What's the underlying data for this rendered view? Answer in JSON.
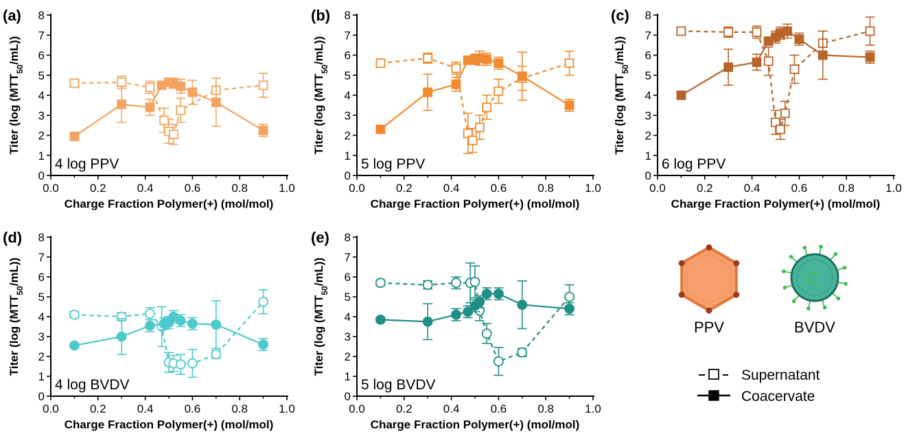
{
  "colors": {
    "a": "#F4A460",
    "b": "#F08A2E",
    "c": "#B8652A",
    "d": "#4CC9CB",
    "e": "#1E8E86",
    "ppv_fill": "#F5A06A",
    "ppv_stroke": "#E0783A",
    "ppv_vertex": "#9A3A1E",
    "bvdv_fill": "#46B39A",
    "bvdv_ring": "#1E6E60",
    "bvdv_spike": "#3CBF4E"
  },
  "legend": {
    "supernatant": "Supernatant",
    "coacervate": "Coacervate"
  },
  "viruses": {
    "ppv_label": "PPV",
    "bvdv_label": "BVDV"
  },
  "chart_data": [
    {
      "panel": "(a)",
      "type": "line",
      "annotation": "4 log PPV",
      "xlabel": "Charge Fraction Polymer(+) (mol/mol)",
      "ylabel": "Titer (log (MTT50/mL))",
      "xlim": [
        0.0,
        1.0
      ],
      "ylim": [
        0,
        8
      ],
      "xticks": [
        "0.0",
        "0.2",
        "0.4",
        "0.6",
        "0.8",
        "1.0"
      ],
      "yticks": [
        "0",
        "1",
        "2",
        "3",
        "4",
        "5",
        "6",
        "7",
        "8"
      ],
      "color_key": "a",
      "marker": "square",
      "series": [
        {
          "name": "Supernatant",
          "style": "dashed-open",
          "x": [
            0.1,
            0.3,
            0.42,
            0.48,
            0.5,
            0.52,
            0.55,
            0.7,
            0.9
          ],
          "y": [
            4.6,
            4.65,
            4.4,
            2.75,
            2.2,
            2.05,
            3.25,
            4.25,
            4.5
          ],
          "err": [
            0.15,
            0.3,
            0.3,
            0.6,
            0.6,
            0.5,
            0.6,
            0.6,
            0.6
          ]
        },
        {
          "name": "Coacervate",
          "style": "solid-filled",
          "x": [
            0.1,
            0.3,
            0.42,
            0.47,
            0.5,
            0.52,
            0.55,
            0.6,
            0.7,
            0.9
          ],
          "y": [
            1.95,
            3.55,
            3.4,
            4.5,
            4.65,
            4.6,
            4.45,
            4.15,
            3.65,
            2.25
          ],
          "err": [
            0.15,
            0.9,
            0.4,
            0.2,
            0.2,
            0.25,
            0.35,
            0.6,
            1.2,
            0.3
          ]
        }
      ]
    },
    {
      "panel": "(b)",
      "type": "line",
      "annotation": "5 log PPV",
      "xlabel": "Charge Fraction Polymer(+) (mol/mol)",
      "ylabel": "Titer (log (MTT50/mL))",
      "xlim": [
        0.0,
        1.0
      ],
      "ylim": [
        0,
        8
      ],
      "xticks": [
        "0.0",
        "0.2",
        "0.4",
        "0.6",
        "0.8",
        "1.0"
      ],
      "yticks": [
        "0",
        "1",
        "2",
        "3",
        "4",
        "5",
        "6",
        "7",
        "8"
      ],
      "color_key": "b",
      "marker": "square",
      "series": [
        {
          "name": "Supernatant",
          "style": "dashed-open",
          "x": [
            0.1,
            0.3,
            0.42,
            0.47,
            0.49,
            0.52,
            0.55,
            0.6,
            0.7,
            0.9
          ],
          "y": [
            5.6,
            5.85,
            5.35,
            2.1,
            1.75,
            2.4,
            3.4,
            4.2,
            4.85,
            5.6
          ],
          "err": [
            0.15,
            0.25,
            0.3,
            1.0,
            0.6,
            0.6,
            0.6,
            0.6,
            0.6,
            0.6
          ]
        },
        {
          "name": "Coacervate",
          "style": "solid-filled",
          "x": [
            0.1,
            0.3,
            0.42,
            0.47,
            0.5,
            0.52,
            0.55,
            0.6,
            0.7,
            0.9
          ],
          "y": [
            2.3,
            4.15,
            4.55,
            5.75,
            5.8,
            5.85,
            5.8,
            5.6,
            4.95,
            3.5
          ],
          "err": [
            0.15,
            0.9,
            0.35,
            0.2,
            0.25,
            0.35,
            0.3,
            0.3,
            1.2,
            0.3
          ]
        }
      ]
    },
    {
      "panel": "(c)",
      "type": "line",
      "annotation": "6 log PPV",
      "xlabel": "Charge Fraction Polymer(+) (mol/mol)",
      "ylabel": "Titer (log (MTT50/mL))",
      "xlim": [
        0.0,
        1.0
      ],
      "ylim": [
        0,
        8
      ],
      "xticks": [
        "0.0",
        "0.2",
        "0.4",
        "0.6",
        "0.8",
        "1.0"
      ],
      "yticks": [
        "0",
        "1",
        "2",
        "3",
        "4",
        "5",
        "6",
        "7",
        "8"
      ],
      "color_key": "c",
      "marker": "square",
      "series": [
        {
          "name": "Supernatant",
          "style": "dashed-open",
          "x": [
            0.1,
            0.3,
            0.42,
            0.47,
            0.5,
            0.52,
            0.54,
            0.58,
            0.7,
            0.9
          ],
          "y": [
            7.2,
            7.15,
            7.15,
            5.7,
            2.65,
            2.3,
            3.1,
            5.3,
            6.6,
            7.2
          ],
          "err": [
            0.15,
            0.25,
            0.3,
            0.7,
            0.6,
            0.5,
            0.6,
            0.7,
            0.6,
            0.7
          ]
        },
        {
          "name": "Coacervate",
          "style": "solid-filled",
          "x": [
            0.1,
            0.3,
            0.42,
            0.47,
            0.5,
            0.52,
            0.55,
            0.6,
            0.7,
            0.9
          ],
          "y": [
            4.0,
            5.4,
            5.65,
            6.7,
            6.9,
            7.1,
            7.2,
            6.8,
            6.0,
            5.9
          ],
          "err": [
            0.15,
            0.9,
            0.4,
            0.2,
            0.3,
            0.3,
            0.35,
            0.3,
            1.2,
            0.3
          ]
        }
      ]
    },
    {
      "panel": "(d)",
      "type": "line",
      "annotation": "4 log BVDV",
      "xlabel": "Charge Fraction Polymer(+) (mol/mol)",
      "ylabel": "Titer (log (MTT50/mL))",
      "xlim": [
        0.0,
        1.0
      ],
      "ylim": [
        0,
        8
      ],
      "xticks": [
        "0.0",
        "0.2",
        "0.4",
        "0.6",
        "0.8",
        "1.0"
      ],
      "yticks": [
        "0",
        "1",
        "2",
        "3",
        "4",
        "5",
        "6",
        "7",
        "8"
      ],
      "color_key": "d",
      "marker": "circle",
      "series": [
        {
          "name": "Supernatant",
          "style": "dashed-open",
          "x": [
            0.1,
            0.3,
            0.42,
            0.47,
            0.5,
            0.52,
            0.55,
            0.6,
            0.7,
            0.9
          ],
          "y": [
            4.1,
            4.0,
            4.15,
            3.5,
            1.7,
            1.65,
            1.6,
            1.65,
            2.1,
            4.75
          ],
          "err": [
            0.15,
            0.2,
            0.3,
            1.0,
            0.5,
            0.4,
            0.5,
            0.7,
            0.2,
            0.6
          ]
        },
        {
          "name": "Coacervate",
          "style": "solid-filled",
          "x": [
            0.1,
            0.3,
            0.42,
            0.48,
            0.5,
            0.52,
            0.55,
            0.6,
            0.7,
            0.9
          ],
          "y": [
            2.55,
            3.0,
            3.55,
            3.65,
            3.7,
            4.0,
            3.8,
            3.65,
            3.6,
            2.6
          ],
          "err": [
            0.1,
            0.9,
            0.3,
            0.3,
            0.3,
            0.3,
            0.3,
            0.3,
            1.2,
            0.3
          ]
        }
      ]
    },
    {
      "panel": "(e)",
      "type": "line",
      "annotation": "5 log BVDV",
      "xlabel": "Charge Fraction Polymer(+) (mol/mol)",
      "ylabel": "Titer (log (MTT50/mL))",
      "xlim": [
        0.0,
        1.0
      ],
      "ylim": [
        0,
        8
      ],
      "xticks": [
        "0.0",
        "0.2",
        "0.4",
        "0.6",
        "0.8",
        "1.0"
      ],
      "yticks": [
        "0",
        "1",
        "2",
        "3",
        "4",
        "5",
        "6",
        "7",
        "8"
      ],
      "color_key": "e",
      "marker": "circle",
      "series": [
        {
          "name": "Supernatant",
          "style": "dashed-open",
          "x": [
            0.1,
            0.3,
            0.42,
            0.48,
            0.5,
            0.52,
            0.55,
            0.6,
            0.7,
            0.9
          ],
          "y": [
            5.7,
            5.6,
            5.7,
            5.7,
            5.75,
            4.3,
            3.15,
            1.75,
            2.2,
            5.0
          ],
          "err": [
            0.15,
            0.2,
            0.3,
            1.0,
            0.8,
            0.5,
            0.5,
            0.7,
            0.2,
            0.6
          ]
        },
        {
          "name": "Coacervate",
          "style": "solid-filled",
          "x": [
            0.1,
            0.3,
            0.42,
            0.47,
            0.5,
            0.52,
            0.55,
            0.6,
            0.7,
            0.9
          ],
          "y": [
            3.85,
            3.75,
            4.1,
            4.25,
            4.55,
            4.75,
            5.15,
            5.15,
            4.6,
            4.4
          ],
          "err": [
            0.1,
            0.9,
            0.3,
            0.3,
            0.3,
            0.3,
            0.3,
            0.3,
            1.2,
            0.3
          ]
        }
      ]
    }
  ]
}
